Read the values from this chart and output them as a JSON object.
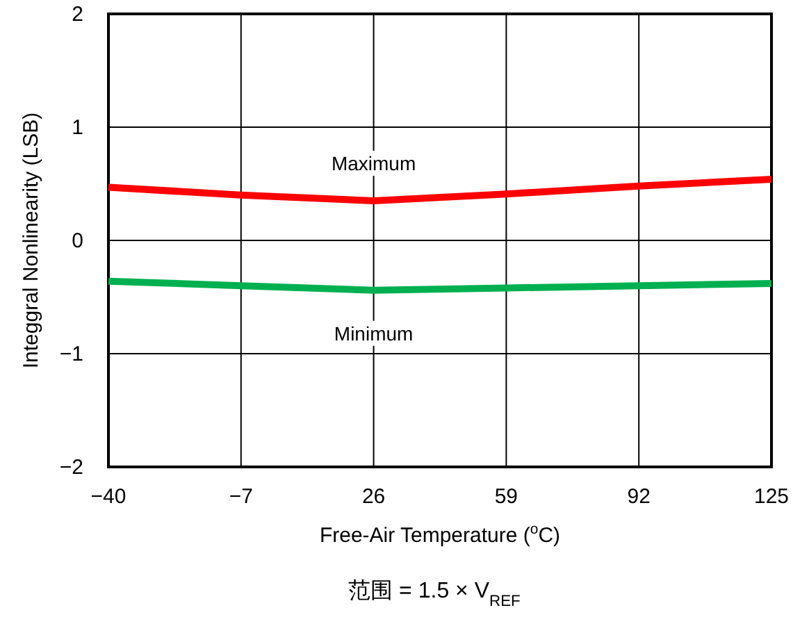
{
  "chart_data": {
    "type": "line",
    "xlabel": "Free-Air Temperature ($^{o}$C)",
    "ylabel": "Integgral Nonlinearity (LSB)",
    "x": [
      -40,
      -7,
      26,
      59,
      92,
      125
    ],
    "series": [
      {
        "name": "Maximum",
        "color": "#ff0000",
        "values": [
          0.47,
          0.4,
          0.35,
          0.41,
          0.48,
          0.54
        ]
      },
      {
        "name": "Minimum",
        "color": "#00b050",
        "values": [
          -0.36,
          -0.4,
          -0.44,
          -0.42,
          -0.4,
          -0.38
        ]
      }
    ],
    "xlim": [
      -40,
      125
    ],
    "xticks": [
      {
        "value": -40,
        "label": "−40"
      },
      {
        "value": -7,
        "label": "−7"
      },
      26,
      59,
      92,
      125
    ],
    "ylim": [
      -2,
      2
    ],
    "yticks": [
      {
        "value": -2,
        "label": "−2"
      },
      {
        "value": -1,
        "label": "−1"
      },
      0,
      1,
      2
    ],
    "grid": true,
    "legend": false,
    "marker": "none",
    "line_style": "solid",
    "annotations": [
      "范围 = 1.5 × V$_{REF}$"
    ]
  }
}
